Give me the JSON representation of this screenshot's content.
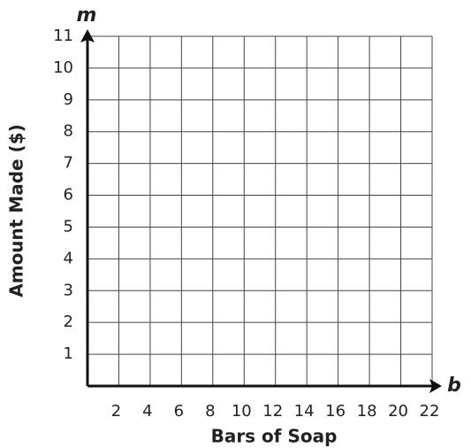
{
  "chart_data": {
    "type": "grid",
    "x_label": "Bars of Soap",
    "y_label": "Amount Made ($)",
    "x_variable": "b",
    "y_variable": "m",
    "xlim": [
      0,
      22
    ],
    "ylim": [
      0,
      11
    ],
    "xticks": [
      2,
      4,
      6,
      8,
      10,
      12,
      14,
      16,
      18,
      20,
      22
    ],
    "yticks": [
      1,
      2,
      3,
      4,
      5,
      6,
      7,
      8,
      9,
      10,
      11
    ],
    "grid": true
  }
}
